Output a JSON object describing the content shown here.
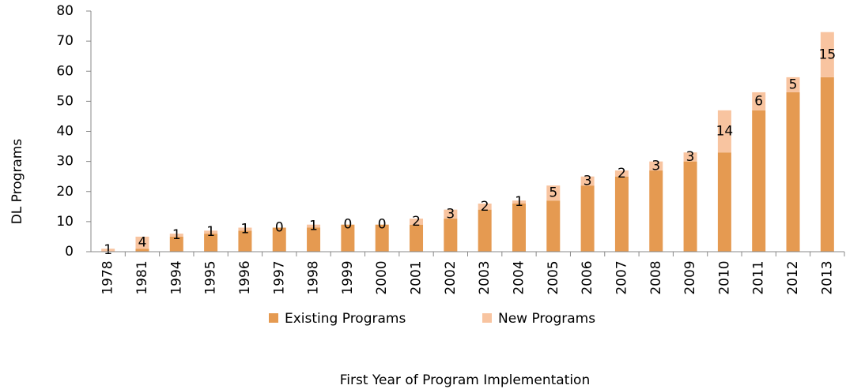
{
  "chart_data": {
    "type": "stacked_bar",
    "x_label": "First Year of Program Implementation",
    "y_label": "DL Programs",
    "categories": [
      "1978",
      "1981",
      "1994",
      "1995",
      "1996",
      "1997",
      "1998",
      "1999",
      "2000",
      "2001",
      "2002",
      "2003",
      "2004",
      "2005",
      "2006",
      "2007",
      "2008",
      "2009",
      "2010",
      "2011",
      "2012",
      "2013"
    ],
    "series": [
      {
        "name": "Existing Programs",
        "color": "#e59a51",
        "values": [
          0,
          1,
          5,
          6,
          7,
          8,
          8,
          9,
          9,
          9,
          11,
          14,
          16,
          17,
          22,
          25,
          27,
          30,
          33,
          47,
          53,
          58
        ]
      },
      {
        "name": "New Programs",
        "color": "#f8c4a0",
        "values": [
          1,
          4,
          1,
          1,
          1,
          0,
          1,
          0,
          0,
          2,
          3,
          2,
          1,
          5,
          3,
          2,
          3,
          3,
          14,
          6,
          5,
          15
        ]
      }
    ],
    "ylim": [
      0,
      80
    ],
    "yticks": [
      0,
      10,
      20,
      30,
      40,
      50,
      60,
      70,
      80
    ],
    "data_labels_series": 1
  }
}
